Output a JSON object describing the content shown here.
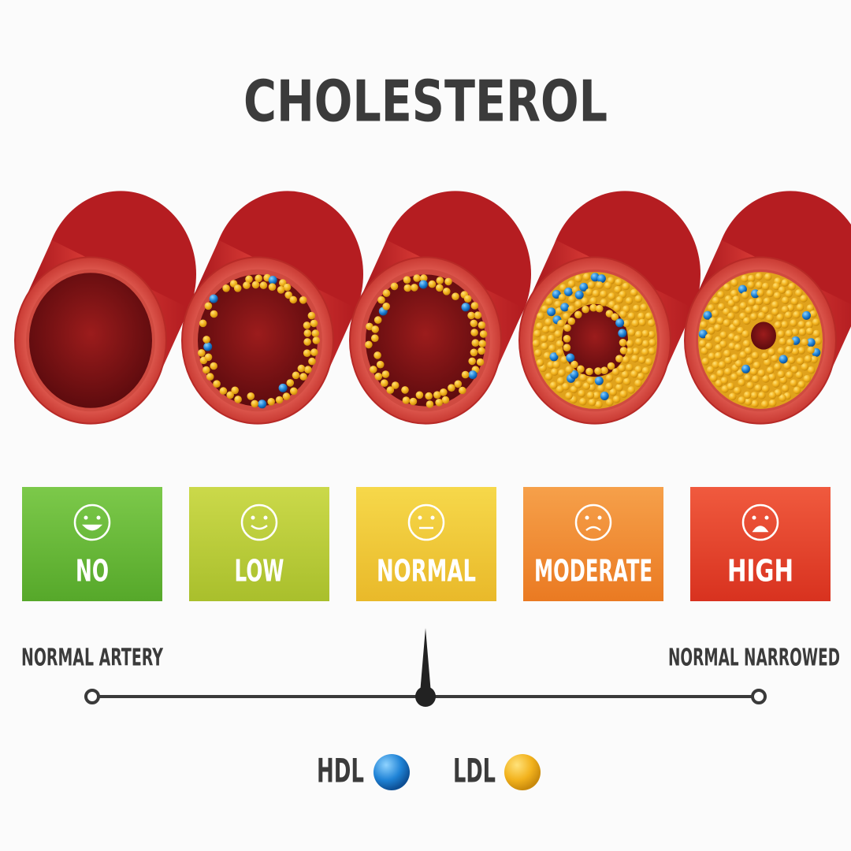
{
  "title": "CHOLESTEROL",
  "levels": [
    "NO",
    "LOW",
    "NORMAL",
    "MODERATE",
    "HIGH"
  ],
  "scale": {
    "left": "NORMAL ARTERY",
    "right": "NORMAL NARROWED"
  },
  "legend": [
    "HDL",
    "LDL"
  ]
}
